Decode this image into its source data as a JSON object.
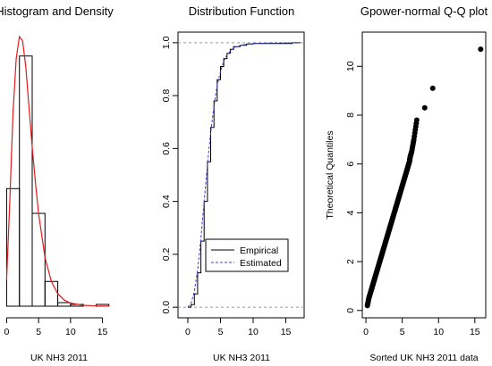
{
  "chart_data": [
    {
      "type": "bar",
      "title": "Histogram and Density",
      "xlabel": "UK NH3 2011",
      "ylabel": "",
      "xlim": [
        -0.2,
        16.6
      ],
      "ylim": [
        0,
        0.31
      ],
      "x_ticks": [
        "0",
        "5",
        "10",
        "15"
      ],
      "bins": [
        {
          "from": 0,
          "to": 2,
          "density": 0.133
        },
        {
          "from": 2,
          "to": 4,
          "density": 0.283
        },
        {
          "from": 4,
          "to": 6,
          "density": 0.105
        },
        {
          "from": 6,
          "to": 8,
          "density": 0.028
        },
        {
          "from": 8,
          "to": 10,
          "density": 0.004
        },
        {
          "from": 10,
          "to": 12,
          "density": 0.002
        },
        {
          "from": 12,
          "to": 14,
          "density": 0.0
        },
        {
          "from": 14,
          "to": 16,
          "density": 0.002
        }
      ],
      "density_curve": {
        "color": "#e41a1c",
        "x": [
          0,
          0.5,
          1,
          1.5,
          2,
          2.5,
          3,
          3.5,
          4,
          4.5,
          5,
          6,
          7,
          8,
          9,
          10,
          12,
          14,
          16
        ],
        "y": [
          0.03,
          0.12,
          0.22,
          0.28,
          0.305,
          0.3,
          0.27,
          0.225,
          0.18,
          0.14,
          0.105,
          0.055,
          0.028,
          0.014,
          0.007,
          0.0035,
          0.001,
          0.0003,
          0.0001
        ]
      }
    },
    {
      "type": "line",
      "title": "Distribution Function",
      "xlabel": "UK NH3 2011",
      "ylabel": "",
      "xlim": [
        -1.5,
        17.8
      ],
      "ylim": [
        -0.04,
        1.04
      ],
      "x_ticks": [
        "0",
        "5",
        "10",
        "15"
      ],
      "y_ticks": [
        "0.0",
        "0.2",
        "0.4",
        "0.6",
        "0.8",
        "1.0"
      ],
      "reference_lines": [
        0,
        1
      ],
      "legend": {
        "position": "bottom-right",
        "items": [
          "Empirical",
          "Estimated"
        ]
      },
      "series": [
        {
          "name": "Empirical",
          "color": "#000000",
          "style": "step",
          "x": [
            0,
            0.5,
            1,
            1.5,
            2,
            2.5,
            3,
            3.5,
            4,
            4.5,
            5,
            5.5,
            6,
            6.5,
            7,
            8,
            9,
            10,
            16
          ],
          "y": [
            0.0,
            0.01,
            0.05,
            0.13,
            0.25,
            0.4,
            0.55,
            0.68,
            0.78,
            0.86,
            0.91,
            0.94,
            0.96,
            0.975,
            0.985,
            0.99,
            0.995,
            0.997,
            1.0
          ]
        },
        {
          "name": "Estimated",
          "color": "#3b3bd6",
          "style": "dashed",
          "x": [
            0,
            0.5,
            1,
            1.5,
            2,
            2.5,
            3,
            3.5,
            4,
            4.5,
            5,
            5.5,
            6,
            7,
            8,
            10,
            13,
            17
          ],
          "y": [
            0.0,
            0.015,
            0.06,
            0.14,
            0.26,
            0.4,
            0.54,
            0.66,
            0.76,
            0.84,
            0.89,
            0.93,
            0.955,
            0.98,
            0.99,
            0.997,
            0.999,
            1.0
          ]
        }
      ]
    },
    {
      "type": "scatter",
      "title": "Gpower-normal Q-Q plot",
      "xlabel": "Sorted UK NH3 2011 data",
      "ylabel": "Theoretical Quantiles",
      "xlim": [
        -0.5,
        16.5
      ],
      "ylim": [
        -0.3,
        11.4
      ],
      "x_ticks": [
        "0",
        "5",
        "10",
        "15"
      ],
      "y_ticks": [
        "0",
        "2",
        "4",
        "6",
        "8",
        "10"
      ],
      "points": {
        "x": [
          0.2,
          0.4,
          0.6,
          0.8,
          1.0,
          1.2,
          1.4,
          1.6,
          1.8,
          2.0,
          2.2,
          2.4,
          2.6,
          2.8,
          3.0,
          3.2,
          3.4,
          3.6,
          3.8,
          4.0,
          4.2,
          4.4,
          4.6,
          4.8,
          5.0,
          5.2,
          5.4,
          5.6,
          5.8,
          6.0,
          6.1,
          6.3,
          6.6,
          7.0,
          8.1,
          9.2,
          15.8
        ],
        "y": [
          0.2,
          0.5,
          0.7,
          0.9,
          1.1,
          1.3,
          1.5,
          1.7,
          1.9,
          2.1,
          2.3,
          2.5,
          2.7,
          2.9,
          3.1,
          3.3,
          3.5,
          3.7,
          3.9,
          4.1,
          4.3,
          4.5,
          4.7,
          4.9,
          5.1,
          5.3,
          5.5,
          5.7,
          5.9,
          6.1,
          6.3,
          6.5,
          7.0,
          7.8,
          8.3,
          9.1,
          10.7
        ]
      }
    }
  ]
}
